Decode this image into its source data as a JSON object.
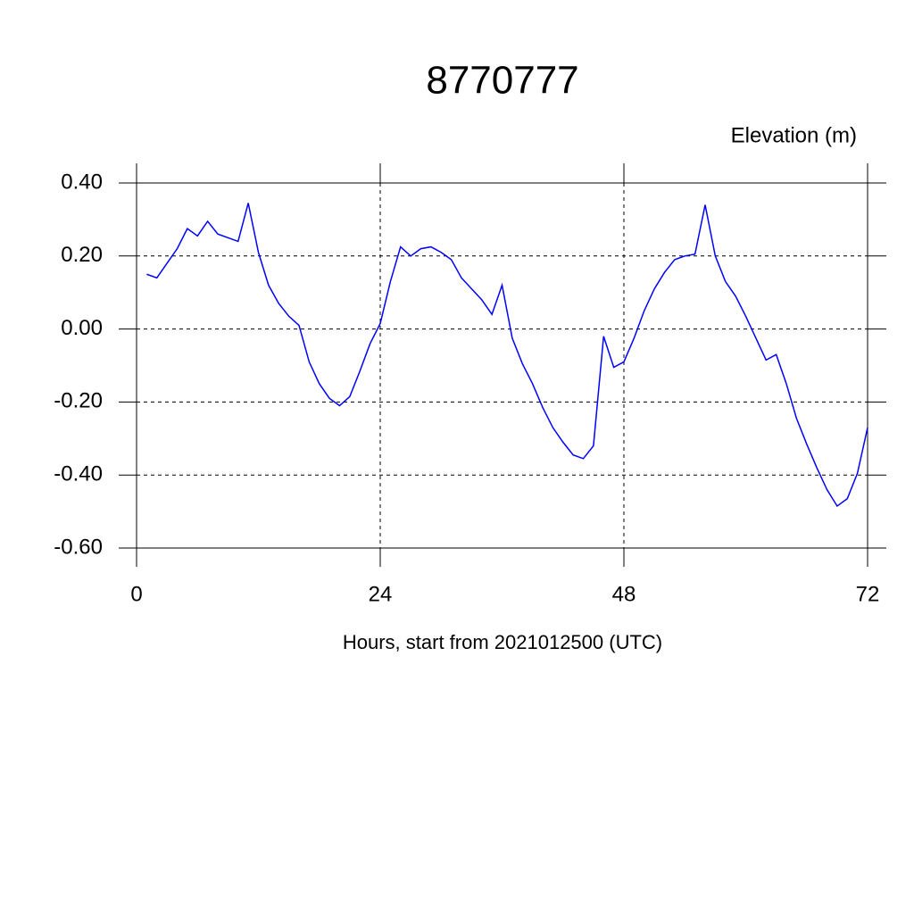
{
  "chart_data": {
    "type": "line",
    "title": "8770777",
    "y_label": "Elevation (m)",
    "x_label": "Hours, start from 2021012500 (UTC)",
    "x": [
      1,
      2,
      3,
      4,
      5,
      6,
      7,
      8,
      9,
      10,
      11,
      12,
      13,
      14,
      15,
      16,
      17,
      18,
      19,
      20,
      21,
      22,
      23,
      24,
      25,
      26,
      27,
      28,
      29,
      30,
      31,
      32,
      33,
      34,
      35,
      36,
      37,
      38,
      39,
      40,
      41,
      42,
      43,
      44,
      45,
      46,
      47,
      48,
      49,
      50,
      51,
      52,
      53,
      54,
      55,
      56,
      57,
      58,
      59,
      60,
      61,
      62,
      63,
      64,
      65,
      66,
      67,
      68,
      69,
      70,
      71,
      72
    ],
    "series": [
      {
        "color": "#0000ff",
        "values": [
          0.15,
          0.14,
          0.18,
          0.22,
          0.275,
          0.255,
          0.295,
          0.26,
          0.25,
          0.24,
          0.345,
          0.21,
          0.12,
          0.07,
          0.035,
          0.01,
          -0.09,
          -0.15,
          -0.19,
          -0.21,
          -0.185,
          -0.115,
          -0.04,
          0.015,
          0.13,
          0.225,
          0.2,
          0.22,
          0.225,
          0.21,
          0.19,
          0.14,
          0.11,
          0.08,
          0.04,
          0.12,
          -0.025,
          -0.095,
          -0.15,
          -0.215,
          -0.27,
          -0.31,
          -0.345,
          -0.355,
          -0.32,
          -0.02,
          -0.105,
          -0.09,
          -0.025,
          0.05,
          0.11,
          0.155,
          0.19,
          0.2,
          0.205,
          0.34,
          0.2,
          0.13,
          0.09,
          0.035,
          -0.025,
          -0.085,
          -0.07,
          -0.15,
          -0.245,
          -0.315,
          -0.38,
          -0.44,
          -0.485,
          -0.465,
          -0.395,
          -0.27
        ]
      }
    ],
    "xlim": [
      0,
      72
    ],
    "xticks": [
      0,
      24,
      48,
      72
    ],
    "ylim": [
      -0.6,
      0.4
    ],
    "yticks": [
      {
        "value": -0.6,
        "label": "-0.60"
      },
      {
        "value": -0.4,
        "label": "-0.40"
      },
      {
        "value": -0.2,
        "label": "-0.20"
      },
      {
        "value": 0,
        "label": "0.00"
      },
      {
        "value": 0.2,
        "label": "0.20"
      },
      {
        "value": 0.4,
        "label": "0.40"
      }
    ],
    "grid": true
  }
}
